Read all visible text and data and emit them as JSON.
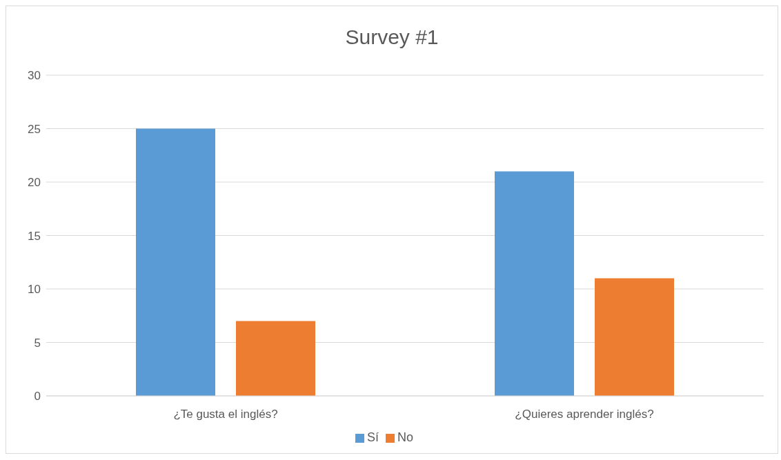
{
  "chart_data": {
    "type": "bar",
    "title": "Survey #1",
    "categories": [
      "¿Te gusta el inglés?",
      "¿Quieres aprender inglés?"
    ],
    "series": [
      {
        "name": "Sí",
        "color": "#5b9bd5",
        "values": [
          25,
          21
        ]
      },
      {
        "name": "No",
        "color": "#ed7d31",
        "values": [
          7,
          11
        ]
      }
    ],
    "ylim": [
      0,
      30
    ],
    "yticks": [
      0,
      5,
      10,
      15,
      20,
      25,
      30
    ],
    "grid": "y",
    "legend": "bottom"
  }
}
